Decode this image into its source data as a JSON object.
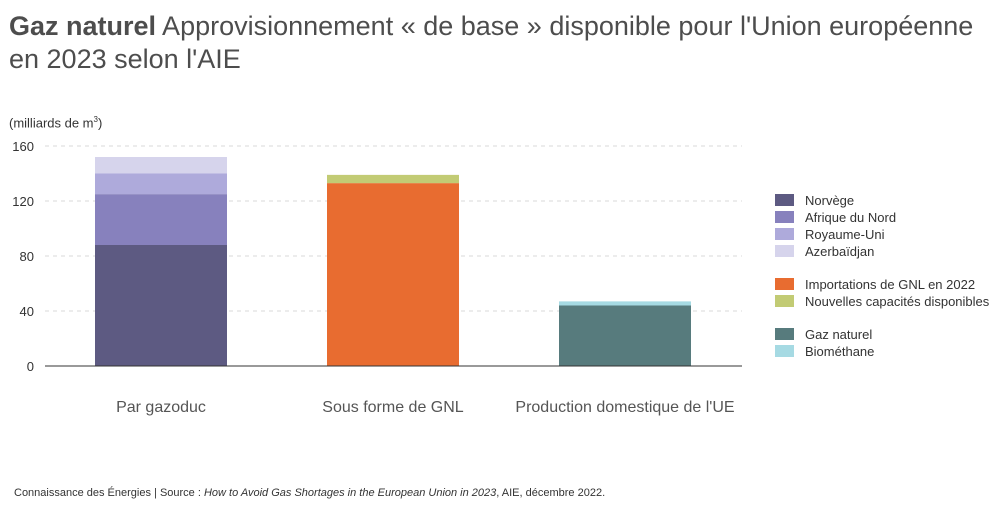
{
  "header": {
    "title_bold": "Gaz naturel",
    "title_rest": " Approvisionnement « de base » disponible pour l'Union européenne en 2023 selon l'AIE"
  },
  "unit": {
    "label": "(milliards de m",
    "sup": "3",
    "close": ")"
  },
  "chart_data": {
    "type": "bar",
    "stacked": true,
    "title": "Approvisionnement « de base » disponible pour l'Union européenne en 2023 selon l'AIE",
    "ylabel": "(milliards de m3)",
    "ylim": [
      0,
      160
    ],
    "yticks": [
      0,
      40,
      80,
      120,
      160
    ],
    "grid": true,
    "categories": [
      "Par gazoduc",
      "Sous forme de GNL",
      "Production domestique de l'UE"
    ],
    "series": [
      {
        "name": "Norvège",
        "color": "#5d5a82",
        "values": [
          88,
          0,
          0
        ]
      },
      {
        "name": "Afrique du Nord",
        "color": "#8781bd",
        "values": [
          37,
          0,
          0
        ]
      },
      {
        "name": "Royaume-Uni",
        "color": "#aeaadb",
        "values": [
          15,
          0,
          0
        ]
      },
      {
        "name": "Azerbaïdjan",
        "color": "#d6d4ec",
        "values": [
          12,
          0,
          0
        ]
      },
      {
        "name": "Importations de GNL en 2022",
        "color": "#e86c30",
        "values": [
          0,
          133,
          0
        ]
      },
      {
        "name": "Nouvelles capacités disponibles",
        "color": "#c2cb74",
        "values": [
          0,
          6,
          0
        ]
      },
      {
        "name": "Gaz naturel",
        "color": "#577b7d",
        "values": [
          0,
          0,
          44
        ]
      },
      {
        "name": "Biométhane",
        "color": "#a6dae3",
        "values": [
          0,
          0,
          3
        ]
      }
    ],
    "legend_position": "right",
    "legend_groups": [
      [
        0,
        1,
        2,
        3
      ],
      [
        4,
        5
      ],
      [
        6,
        7
      ]
    ]
  },
  "footer": {
    "prefix": "Connaissance des Énergies | Source : ",
    "source_title": "How to Avoid Gas Shortages in the European Union in 2023",
    "suffix": ", AIE, décembre 2022."
  }
}
